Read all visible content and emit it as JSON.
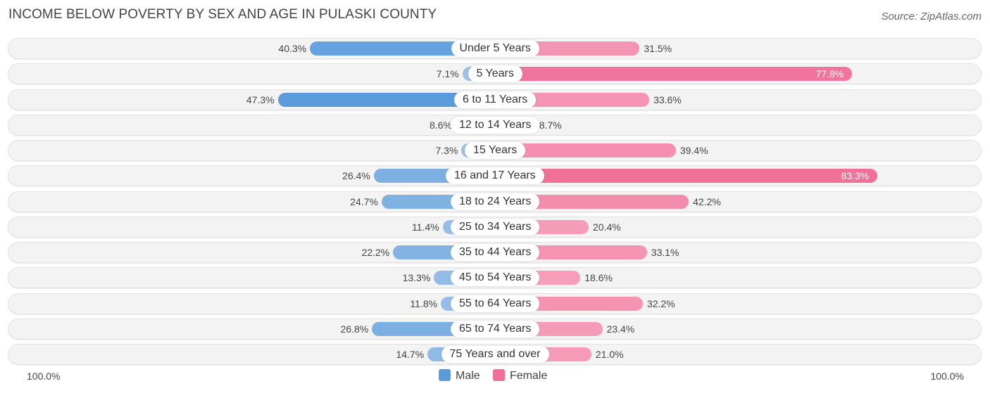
{
  "title": "INCOME BELOW POVERTY BY SEX AND AGE IN PULASKI COUNTY",
  "source": "Source: ZipAtlas.com",
  "chart_data": {
    "type": "bar",
    "orientation": "horizontal-diverging",
    "title": "INCOME BELOW POVERTY BY SEX AND AGE IN PULASKI COUNTY",
    "categories": [
      "Under 5 Years",
      "5 Years",
      "6 to 11 Years",
      "12 to 14 Years",
      "15 Years",
      "16 and 17 Years",
      "18 to 24 Years",
      "25 to 34 Years",
      "35 to 44 Years",
      "45 to 54 Years",
      "55 to 64 Years",
      "65 to 74 Years",
      "75 Years and over"
    ],
    "series": [
      {
        "name": "Male",
        "values": [
          40.3,
          7.1,
          47.3,
          8.6,
          7.3,
          26.4,
          24.7,
          11.4,
          22.2,
          13.3,
          11.8,
          26.8,
          14.7
        ],
        "labels": [
          "40.3%",
          "7.1%",
          "47.3%",
          "8.6%",
          "7.3%",
          "26.4%",
          "24.7%",
          "11.4%",
          "22.2%",
          "13.3%",
          "11.8%",
          "26.8%",
          "14.7%"
        ]
      },
      {
        "name": "Female",
        "values": [
          31.5,
          77.8,
          33.6,
          8.7,
          39.4,
          83.3,
          42.2,
          20.4,
          33.1,
          18.6,
          32.2,
          23.4,
          21.0
        ],
        "labels": [
          "31.5%",
          "77.8%",
          "33.6%",
          "8.7%",
          "39.4%",
          "83.3%",
          "42.2%",
          "20.4%",
          "33.1%",
          "18.6%",
          "32.2%",
          "23.4%",
          "21.0%"
        ]
      }
    ],
    "xlim": [
      -100,
      100
    ],
    "axis_left_label": "100.0%",
    "axis_right_label": "100.0%",
    "legend": [
      "Male",
      "Female"
    ],
    "legend_position": "bottom-center",
    "colors": {
      "male_strong": "#5b9bdb",
      "male_light": "#a7c8eb",
      "female_strong": "#f07098",
      "female_light": "#f7aac3"
    }
  }
}
